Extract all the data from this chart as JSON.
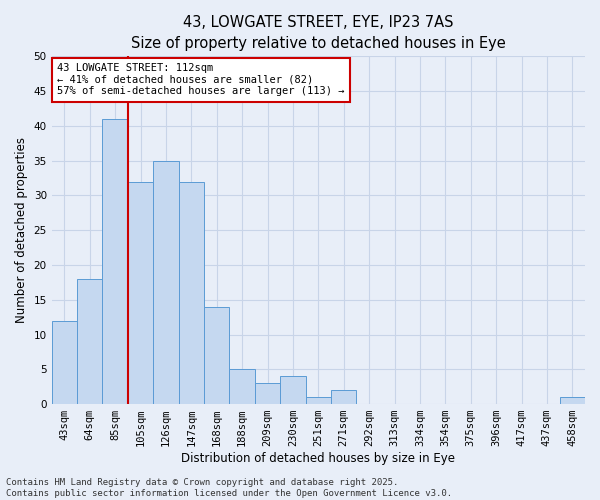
{
  "title_line1": "43, LOWGATE STREET, EYE, IP23 7AS",
  "title_line2": "Size of property relative to detached houses in Eye",
  "xlabel": "Distribution of detached houses by size in Eye",
  "ylabel": "Number of detached properties",
  "categories": [
    "43sqm",
    "64sqm",
    "85sqm",
    "105sqm",
    "126sqm",
    "147sqm",
    "168sqm",
    "188sqm",
    "209sqm",
    "230sqm",
    "251sqm",
    "271sqm",
    "292sqm",
    "313sqm",
    "334sqm",
    "354sqm",
    "375sqm",
    "396sqm",
    "417sqm",
    "437sqm",
    "458sqm"
  ],
  "values": [
    12,
    18,
    41,
    32,
    35,
    32,
    14,
    5,
    3,
    4,
    1,
    2,
    0,
    0,
    0,
    0,
    0,
    0,
    0,
    0,
    1
  ],
  "bar_color": "#c5d8f0",
  "bar_edge_color": "#5b9bd5",
  "bar_edge_width": 0.7,
  "vline_color": "#cc0000",
  "vline_index": 3,
  "ylim": [
    0,
    50
  ],
  "yticks": [
    0,
    5,
    10,
    15,
    20,
    25,
    30,
    35,
    40,
    45,
    50
  ],
  "grid_color": "#c8d4e8",
  "background_color": "#e8eef8",
  "annotation_text": "43 LOWGATE STREET: 112sqm\n← 41% of detached houses are smaller (82)\n57% of semi-detached houses are larger (113) →",
  "annotation_box_color": "#ffffff",
  "annotation_box_edge": "#cc0000",
  "footer_text": "Contains HM Land Registry data © Crown copyright and database right 2025.\nContains public sector information licensed under the Open Government Licence v3.0.",
  "title_fontsize": 10.5,
  "subtitle_fontsize": 9.5,
  "axis_label_fontsize": 8.5,
  "tick_fontsize": 7.5,
  "annotation_fontsize": 7.5,
  "footer_fontsize": 6.5
}
